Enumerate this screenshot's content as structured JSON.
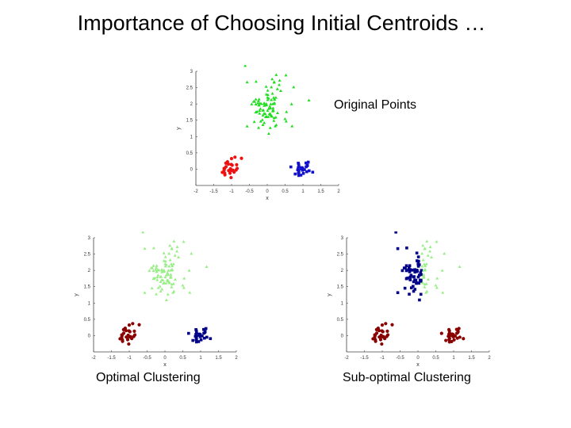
{
  "slide": {
    "title": "Importance of Choosing Initial Centroids …",
    "captions": {
      "original": "Original Points",
      "optimal": "Optimal Clustering",
      "suboptimal": "Sub-optimal Clustering"
    }
  },
  "chart_data": [
    {
      "id": "original",
      "type": "scatter",
      "xlabel": "x",
      "ylabel": "y",
      "xlim": [
        -2,
        2
      ],
      "ylim": [
        -0.5,
        3
      ],
      "xticks": [
        "-2",
        "-1.5",
        "-1",
        "-0.5",
        "0",
        "0.5",
        "1",
        "1.5",
        "2"
      ],
      "yticks": [
        "0",
        "0.5",
        "1",
        "1.5",
        "2",
        "2.5",
        "3"
      ],
      "colors": [
        "#22dd22",
        "#ee1111",
        "#1111cc"
      ],
      "marker_mode": "cluster"
    },
    {
      "id": "optimal",
      "type": "scatter",
      "xlabel": "x",
      "ylabel": "y",
      "xlim": [
        -2,
        2
      ],
      "ylim": [
        -0.5,
        3
      ],
      "xticks": [
        "-2",
        "-1.5",
        "-1",
        "-0.5",
        "0",
        "0.5",
        "1",
        "1.5",
        "2"
      ],
      "yticks": [
        "0",
        "0.5",
        "1",
        "1.5",
        "2",
        "2.5",
        "3"
      ],
      "colors": [
        "#99ee88",
        "#880000",
        "#000088"
      ],
      "marker_mode": "cluster"
    },
    {
      "id": "suboptimal",
      "type": "scatter",
      "xlabel": "x",
      "ylabel": "y",
      "xlim": [
        -2,
        2
      ],
      "ylim": [
        -0.5,
        3
      ],
      "xticks": [
        "-2",
        "-1.5",
        "-1",
        "-0.5",
        "0",
        "0.5",
        "1",
        "1.5",
        "2"
      ],
      "yticks": [
        "0",
        "0.5",
        "1",
        "1.5",
        "2",
        "2.5",
        "3"
      ],
      "colors": [
        "#99ee88",
        "#880000",
        "#000088"
      ],
      "marker_mode": "split"
    }
  ]
}
